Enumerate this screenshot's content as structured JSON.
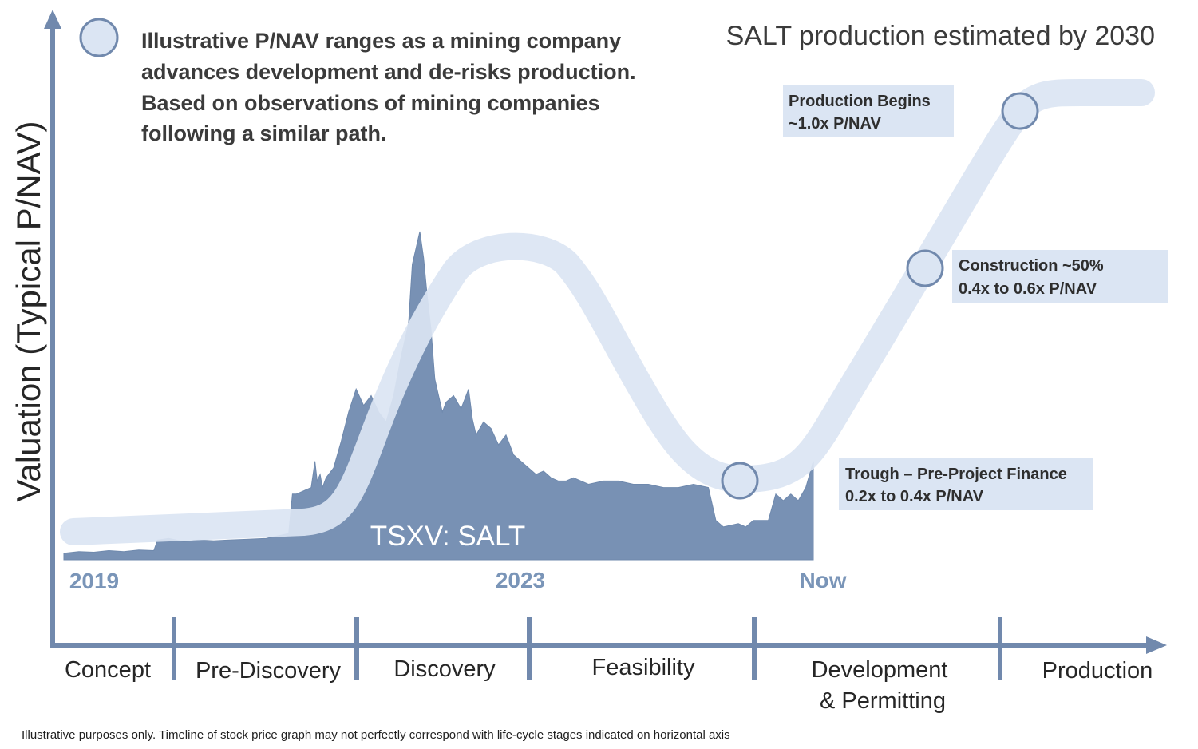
{
  "chart_data": {
    "type": "area",
    "title": "SALT production estimated by 2030",
    "legend": {
      "lines": [
        "Illustrative P/NAV ranges as a mining company",
        "advances development and de-risks production.",
        "Based on observations of mining companies",
        "following a similar path."
      ]
    },
    "ylabel": "Valuation (Typical P/NAV)",
    "series_label": "TSXV: SALT",
    "years": [
      "2019",
      "2023",
      "Now"
    ],
    "stages": [
      "Concept",
      "Pre-Discovery",
      "Discovery",
      "Feasibility",
      "Development",
      "& Permitting",
      "Production"
    ],
    "annotations": [
      {
        "lines": [
          "Production Begins",
          "~1.0x P/NAV"
        ]
      },
      {
        "lines": [
          "Construction ~50%",
          "0.4x to 0.6x P/NAV"
        ]
      },
      {
        "lines": [
          "Trough – Pre-Project Finance",
          "0.2x to 0.4x P/NAV"
        ]
      }
    ],
    "price_series_relative": {
      "x": [
        0,
        0.02,
        0.04,
        0.06,
        0.08,
        0.1,
        0.12,
        0.125,
        0.14,
        0.16,
        0.18,
        0.2,
        0.22,
        0.24,
        0.27,
        0.3,
        0.305,
        0.31,
        0.33,
        0.335,
        0.338,
        0.342,
        0.345,
        0.35,
        0.36,
        0.37,
        0.38,
        0.39,
        0.4,
        0.41,
        0.42,
        0.43,
        0.44,
        0.45,
        0.46,
        0.465,
        0.47,
        0.475,
        0.48,
        0.485,
        0.49,
        0.495,
        0.5,
        0.505,
        0.51,
        0.52,
        0.53,
        0.54,
        0.545,
        0.55,
        0.56,
        0.57,
        0.58,
        0.59,
        0.6,
        0.61,
        0.62,
        0.63,
        0.64,
        0.65,
        0.66,
        0.67,
        0.68,
        0.7,
        0.72,
        0.74,
        0.76,
        0.78,
        0.8,
        0.82,
        0.84,
        0.86,
        0.87,
        0.88,
        0.9,
        0.91,
        0.92,
        0.94,
        0.95,
        0.96,
        0.97,
        0.98,
        0.99,
        1.0
      ],
      "y": [
        0.02,
        0.025,
        0.023,
        0.028,
        0.025,
        0.03,
        0.028,
        0.06,
        0.065,
        0.055,
        0.06,
        0.058,
        0.06,
        0.062,
        0.065,
        0.08,
        0.2,
        0.2,
        0.22,
        0.3,
        0.24,
        0.26,
        0.22,
        0.25,
        0.28,
        0.36,
        0.45,
        0.52,
        0.47,
        0.5,
        0.45,
        0.42,
        0.5,
        0.62,
        0.72,
        0.9,
        0.95,
        1.0,
        0.92,
        0.8,
        0.7,
        0.55,
        0.5,
        0.45,
        0.48,
        0.5,
        0.46,
        0.52,
        0.43,
        0.38,
        0.42,
        0.4,
        0.35,
        0.38,
        0.32,
        0.3,
        0.28,
        0.26,
        0.27,
        0.25,
        0.24,
        0.24,
        0.25,
        0.23,
        0.24,
        0.24,
        0.23,
        0.23,
        0.22,
        0.22,
        0.23,
        0.22,
        0.12,
        0.1,
        0.11,
        0.1,
        0.12,
        0.12,
        0.2,
        0.18,
        0.2,
        0.18,
        0.22,
        0.3
      ]
    }
  },
  "footnote": "Illustrative purposes only. Timeline of stock price graph may not perfectly correspond with life-cycle stages indicated on horizontal axis",
  "colors": {
    "axis": "#7189ad",
    "band": "#dbe5f3",
    "marker_stroke": "#7189ad",
    "area": "#7891b4",
    "annotation_box": "#dbe5f3"
  }
}
